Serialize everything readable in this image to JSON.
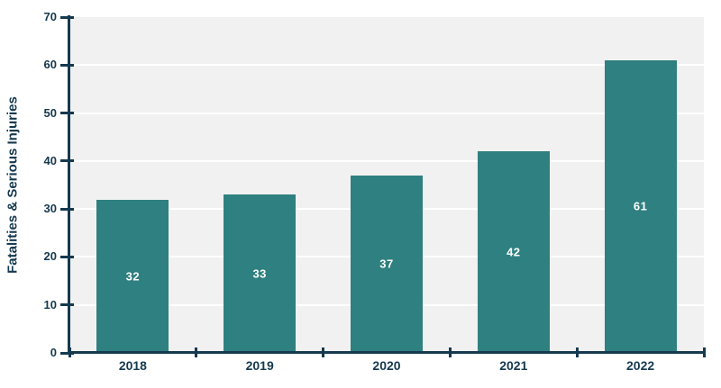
{
  "chart_data": {
    "type": "bar",
    "title": "",
    "xlabel": "",
    "ylabel": "Fatalities & Serious Injuries",
    "categories": [
      "2018",
      "2019",
      "2020",
      "2021",
      "2022"
    ],
    "values": [
      32,
      33,
      37,
      42,
      61
    ],
    "data_labels": [
      "32",
      "33",
      "37",
      "42",
      "61"
    ],
    "data_labels_position": "inside-center",
    "ylim": [
      0,
      70
    ],
    "yticks": [
      0,
      10,
      20,
      30,
      40,
      50,
      60,
      70
    ],
    "grid": "horizontal",
    "legend_position": "none",
    "colors": {
      "bar": "#2f8080",
      "axis": "#15394f",
      "tick_text": "#15394f",
      "plot_background": "#f1f1f1",
      "gridline": "#ffffff",
      "data_label_text": "#ffffff",
      "page_background": "#ffffff"
    }
  }
}
